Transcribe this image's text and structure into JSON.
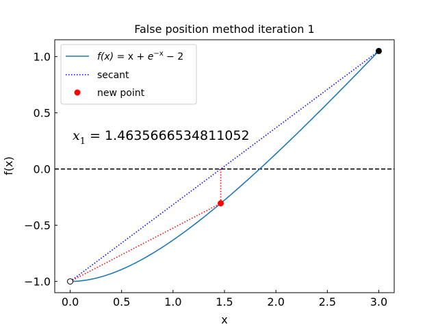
{
  "chart_data": {
    "type": "line",
    "title": "False position method iteration 1",
    "xlabel": "x",
    "ylabel": "f(x)",
    "xlim": [
      -0.15,
      3.15
    ],
    "ylim": [
      -1.1,
      1.15
    ],
    "xticks": [
      0.0,
      0.5,
      1.0,
      1.5,
      2.0,
      2.5,
      3.0
    ],
    "xtick_labels": [
      "0.0",
      "0.5",
      "1.0",
      "1.5",
      "2.0",
      "2.5",
      "3.0"
    ],
    "yticks": [
      -1.0,
      -0.5,
      0.0,
      0.5,
      1.0
    ],
    "ytick_labels": [
      "−1.0",
      "−0.5",
      "0.0",
      "0.5",
      "1.0"
    ],
    "grid": false,
    "legend_position": "top-left",
    "function": {
      "label": "f(x) = x + e^{−x} − 2",
      "label_parts": {
        "fx": "f(x)",
        "eq": " = x + ",
        "base": "e",
        "exp": "−x",
        "tail": " − 2"
      },
      "x_range": [
        0,
        3
      ],
      "color": "#1f77b4"
    },
    "secant": {
      "label": "secant",
      "points": [
        [
          0,
          -1.0
        ],
        [
          3.0,
          1.0498
        ]
      ],
      "color": "#0000ff",
      "style": "dotted"
    },
    "new_point": {
      "label": "new point",
      "x": 1.4635666534811052,
      "y": -0.305,
      "color": "#ff0000"
    },
    "endpoints": [
      {
        "x": 0,
        "y": -1.0,
        "style": "open"
      },
      {
        "x": 3.0,
        "y": 1.0498,
        "style": "filled"
      }
    ],
    "zero_line": {
      "y": 0,
      "style": "dashed",
      "color": "#000000"
    },
    "annotation": {
      "text_base": "x",
      "text_sub": "1",
      "text_rest": " = 1.4635666534811052"
    }
  }
}
